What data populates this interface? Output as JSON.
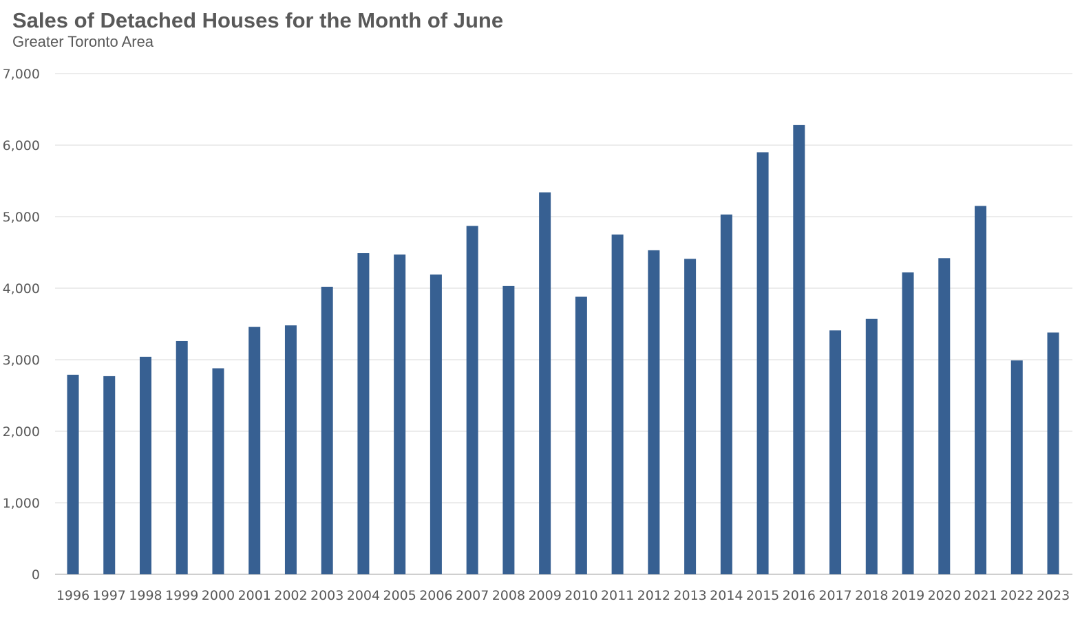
{
  "chart_data": {
    "type": "bar",
    "title": "Sales of Detached Houses for the Month of June",
    "subtitle": "Greater Toronto Area",
    "xlabel": "",
    "ylabel": "",
    "ylim": [
      0,
      7000
    ],
    "yticks": [
      0,
      1000,
      2000,
      3000,
      4000,
      5000,
      6000,
      7000
    ],
    "ytick_labels": [
      "0",
      "1,000",
      "2,000",
      "3,000",
      "4,000",
      "5,000",
      "6,000",
      "7,000"
    ],
    "grid": true,
    "legend": "none",
    "bar_color": "#376092",
    "categories": [
      "1996",
      "1997",
      "1998",
      "1999",
      "2000",
      "2001",
      "2002",
      "2003",
      "2004",
      "2005",
      "2006",
      "2007",
      "2008",
      "2009",
      "2010",
      "2011",
      "2012",
      "2013",
      "2014",
      "2015",
      "2016",
      "2017",
      "2018",
      "2019",
      "2020",
      "2021",
      "2022",
      "2023"
    ],
    "values": [
      2790,
      2770,
      3040,
      3260,
      2880,
      3460,
      3480,
      4020,
      4490,
      4470,
      4190,
      4870,
      4030,
      5340,
      3880,
      4750,
      4530,
      4410,
      5030,
      5900,
      6280,
      3410,
      3570,
      4220,
      4420,
      5150,
      2990,
      3380
    ]
  }
}
